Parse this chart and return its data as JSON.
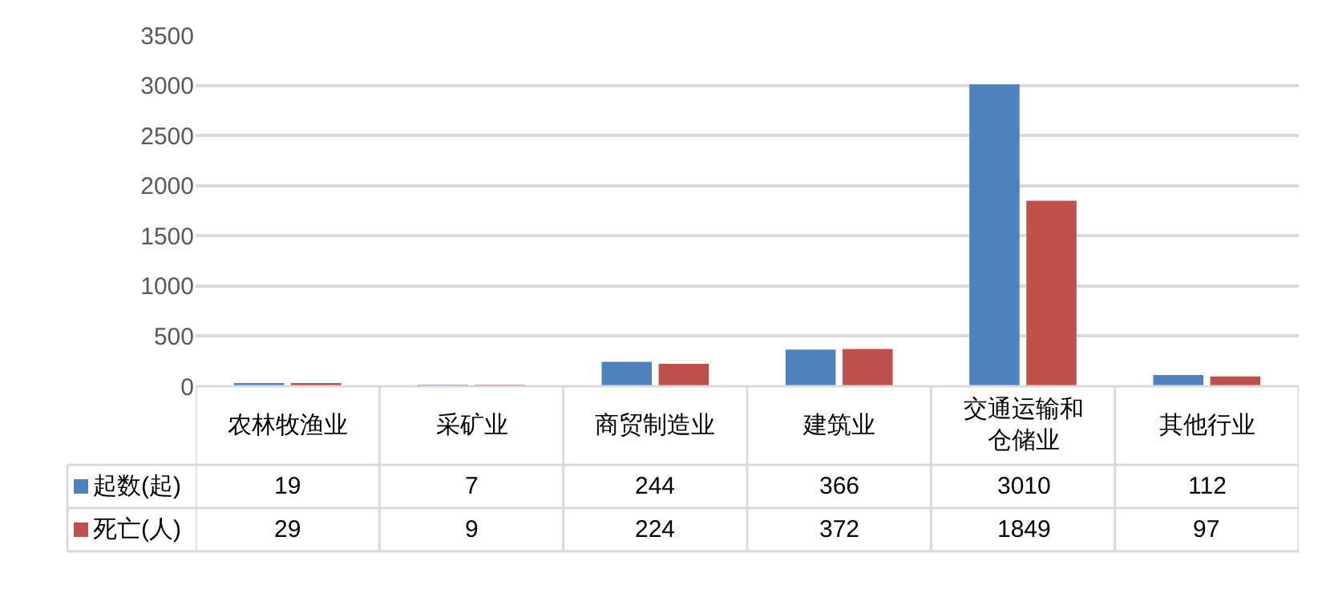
{
  "chart_data": {
    "type": "bar",
    "categories": [
      "农林牧渔业",
      "采矿业",
      "商贸制造业",
      "建筑业",
      "交通运输和仓储业",
      "其他行业"
    ],
    "series": [
      {
        "name": "起数(起)",
        "color": "#4f81bd",
        "values": [
          19,
          7,
          244,
          366,
          3010,
          112
        ]
      },
      {
        "name": "死亡(人)",
        "color": "#c0504d",
        "values": [
          29,
          9,
          224,
          372,
          1849,
          97
        ]
      }
    ],
    "ylim": [
      0,
      3500
    ],
    "yticks": [
      0,
      500,
      1000,
      1500,
      2000,
      2500,
      3000,
      3500
    ],
    "grid": "y",
    "data_labels": true,
    "legend": "bottom left"
  }
}
